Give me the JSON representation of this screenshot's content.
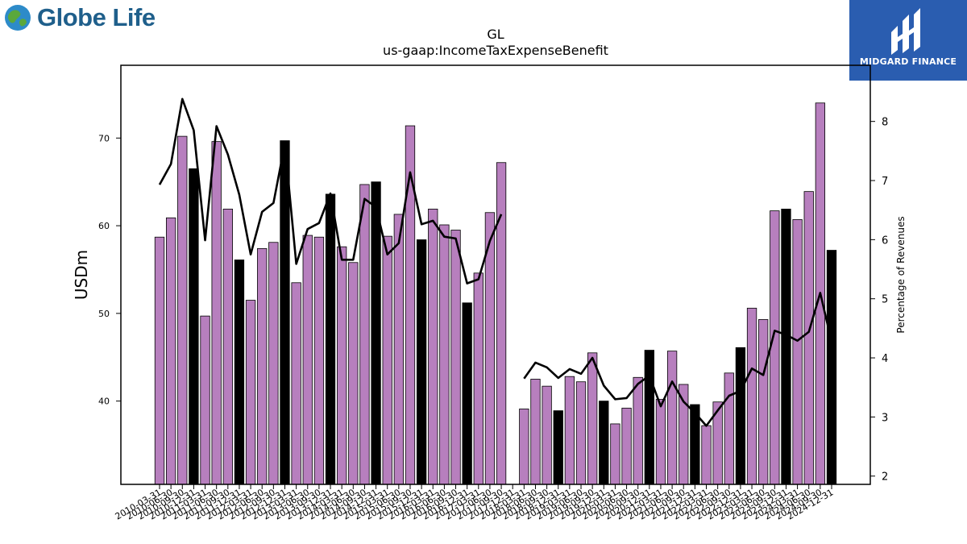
{
  "branding": {
    "left_logo_text": "Globe Life",
    "right_logo_text": "MIDGARD FINANCE"
  },
  "colors": {
    "bar_default": "#b77fbe",
    "bar_highlight": "#000000",
    "line": "#000000"
  },
  "chart_data": {
    "type": "bar",
    "title": "GL",
    "subtitle": "us-gaap:IncomeTaxExpenseBenefit",
    "ylabel": "USDm",
    "y2label": "Percentage of Revenues",
    "ylim": [
      30.5,
      78.3
    ],
    "y2lim": [
      1.86,
      8.95
    ],
    "yticks": [
      40,
      50,
      60,
      70
    ],
    "y2ticks": [
      2,
      3,
      4,
      5,
      6,
      7,
      8
    ],
    "grid": false,
    "categories": [
      "2010-03-31",
      "2010-06-30",
      "2010-09-30",
      "2010-12-31",
      "2011-03-31",
      "2011-06-30",
      "2011-09-30",
      "2011-12-31",
      "2012-03-31",
      "2012-06-30",
      "2012-09-30",
      "2012-12-31",
      "2013-03-31",
      "2013-06-30",
      "2013-09-30",
      "2013-12-31",
      "2014-03-31",
      "2014-06-30",
      "2014-09-30",
      "2014-12-31",
      "2015-03-31",
      "2015-06-30",
      "2015-09-30",
      "2015-12-31",
      "2016-03-31",
      "2016-06-30",
      "2016-09-30",
      "2016-12-31",
      "2017-03-31",
      "2017-06-30",
      "2017-09-30",
      "2017-12-31",
      "2018-03-31",
      "2018-06-30",
      "2018-09-30",
      "2018-12-31",
      "2019-03-31",
      "2019-06-30",
      "2019-09-30",
      "2019-12-31",
      "2020-03-31",
      "2020-06-30",
      "2020-09-30",
      "2020-12-31",
      "2021-03-31",
      "2021-06-30",
      "2021-09-30",
      "2021-12-31",
      "2022-03-31",
      "2022-06-30",
      "2022-09-30",
      "2022-12-31",
      "2023-03-31",
      "2023-06-30",
      "2023-09-30",
      "2023-12-31",
      "2024-03-31",
      "2024-06-30",
      "2024-09-30",
      "2024-12-31"
    ],
    "series": [
      {
        "kind": "bar",
        "axis": "left",
        "values": [
          58.7,
          60.9,
          70.2,
          66.5,
          49.7,
          69.6,
          61.9,
          56.1,
          51.5,
          57.4,
          58.1,
          69.7,
          53.5,
          58.9,
          58.7,
          63.6,
          57.6,
          55.8,
          64.7,
          65.0,
          58.8,
          61.3,
          71.4,
          58.4,
          61.9,
          60.1,
          59.5,
          51.2,
          54.6,
          61.5,
          67.2,
          null,
          39.1,
          42.5,
          41.7,
          38.9,
          42.8,
          42.2,
          45.5,
          40.0,
          37.4,
          39.2,
          42.7,
          45.8,
          40.2,
          45.7,
          41.9,
          39.6,
          37.2,
          39.9,
          43.2,
          46.1,
          50.6,
          49.3,
          61.7,
          61.9,
          60.7,
          63.9,
          74.0,
          57.2
        ],
        "highlight": [
          false,
          false,
          false,
          true,
          false,
          false,
          false,
          true,
          false,
          false,
          false,
          true,
          false,
          false,
          false,
          true,
          false,
          false,
          false,
          true,
          false,
          false,
          false,
          true,
          false,
          false,
          false,
          true,
          false,
          false,
          false,
          true,
          false,
          false,
          false,
          true,
          false,
          false,
          false,
          true,
          false,
          false,
          false,
          true,
          false,
          false,
          false,
          true,
          false,
          false,
          false,
          true,
          false,
          false,
          false,
          true,
          false,
          false,
          false,
          true
        ]
      },
      {
        "kind": "line",
        "axis": "right",
        "values": [
          6.93,
          7.28,
          8.38,
          7.85,
          5.99,
          7.92,
          7.44,
          6.76,
          5.75,
          6.47,
          6.62,
          7.62,
          5.59,
          6.18,
          6.28,
          6.78,
          5.66,
          5.66,
          6.69,
          6.55,
          5.75,
          5.94,
          7.14,
          6.26,
          6.32,
          6.05,
          6.02,
          5.26,
          5.33,
          5.98,
          6.43,
          null,
          3.65,
          3.92,
          3.84,
          3.66,
          3.81,
          3.73,
          4.0,
          3.53,
          3.3,
          3.32,
          3.56,
          3.7,
          3.18,
          3.6,
          3.26,
          3.07,
          2.85,
          3.11,
          3.36,
          3.44,
          3.82,
          3.71,
          4.46,
          4.39,
          4.29,
          4.44,
          5.1,
          4.27
        ]
      }
    ]
  }
}
